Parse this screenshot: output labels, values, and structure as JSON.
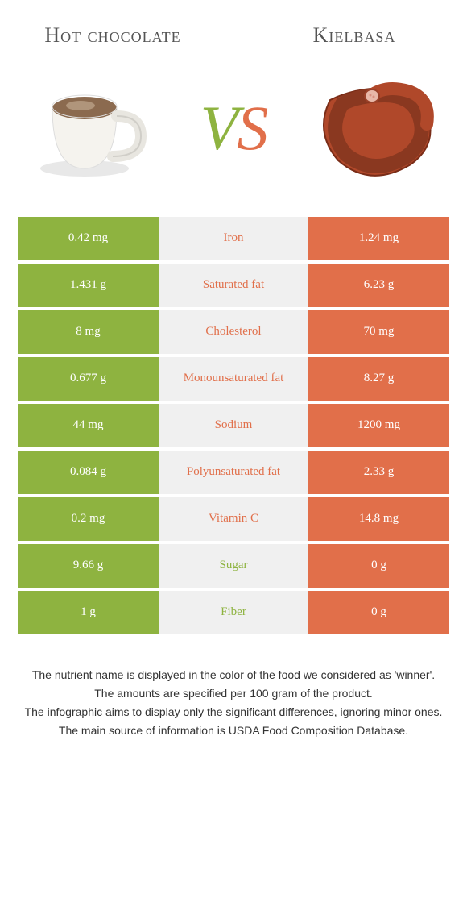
{
  "titles": {
    "left": "Hot chocolate",
    "right": "Kielbasa"
  },
  "vs": {
    "v": "V",
    "s": "S"
  },
  "colors": {
    "left_bg": "#8eb340",
    "right_bg": "#e16f4a",
    "mid_bg": "#f0f0f0",
    "left_text": "#ffffff",
    "right_text": "#ffffff",
    "vs_v": "#8eb340",
    "vs_s": "#e16f4a",
    "label_left_color": "#8eb340",
    "label_right_color": "#e16f4a"
  },
  "rows": [
    {
      "left": "0.42 mg",
      "label": "Iron",
      "right": "1.24 mg",
      "winner": "right"
    },
    {
      "left": "1.431 g",
      "label": "Saturated fat",
      "right": "6.23 g",
      "winner": "right"
    },
    {
      "left": "8 mg",
      "label": "Cholesterol",
      "right": "70 mg",
      "winner": "right"
    },
    {
      "left": "0.677 g",
      "label": "Monounsaturated fat",
      "right": "8.27 g",
      "winner": "right"
    },
    {
      "left": "44 mg",
      "label": "Sodium",
      "right": "1200 mg",
      "winner": "right"
    },
    {
      "left": "0.084 g",
      "label": "Polyunsaturated fat",
      "right": "2.33 g",
      "winner": "right"
    },
    {
      "left": "0.2 mg",
      "label": "Vitamin C",
      "right": "14.8 mg",
      "winner": "right"
    },
    {
      "left": "9.66 g",
      "label": "Sugar",
      "right": "0 g",
      "winner": "left"
    },
    {
      "left": "1 g",
      "label": "Fiber",
      "right": "0 g",
      "winner": "left"
    }
  ],
  "footer": [
    "The nutrient name is displayed in the color of the food we considered as 'winner'.",
    "The amounts are specified per 100 gram of the product.",
    "The infographic aims to display only the significant differences, ignoring minor ones.",
    "The main source of information is USDA Food Composition Database."
  ]
}
